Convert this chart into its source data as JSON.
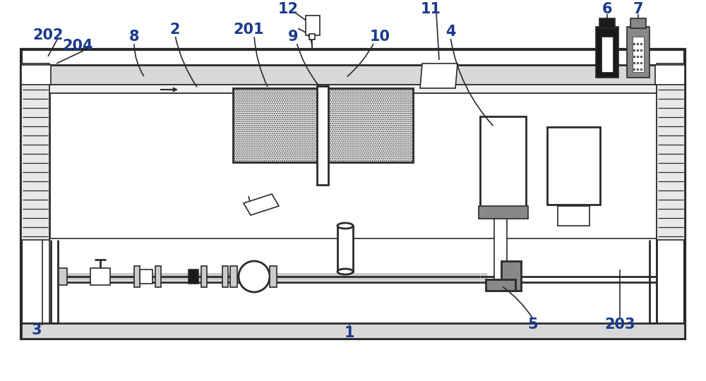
{
  "bg_color": "#ffffff",
  "line_color": "#2a2a2a",
  "label_color": "#1a3a8a",
  "fig_width": 10.0,
  "fig_height": 5.4,
  "label_fontsize": 15
}
